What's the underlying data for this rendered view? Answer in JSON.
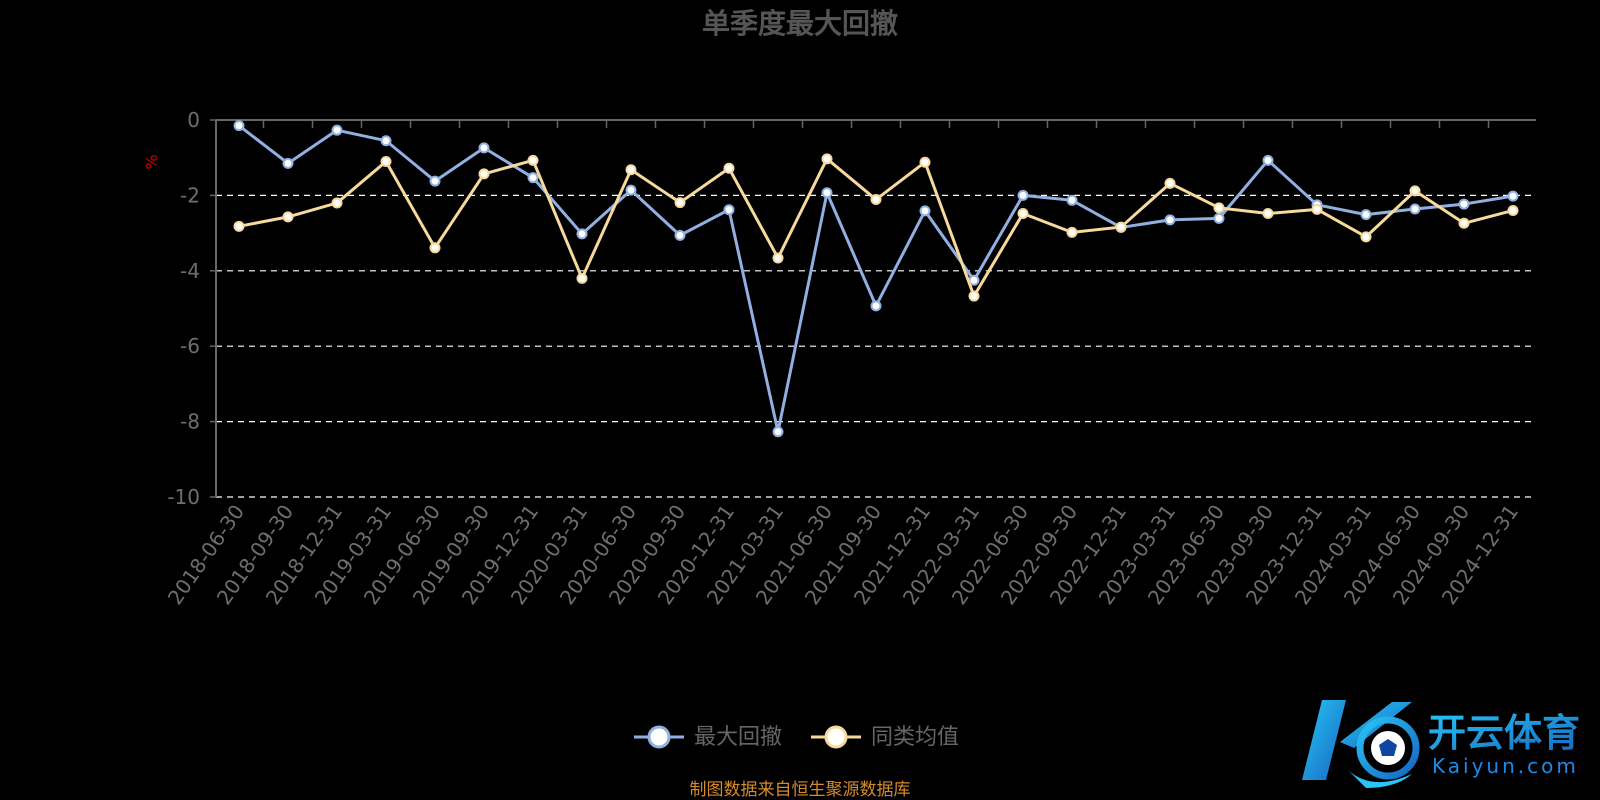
{
  "chart_data": {
    "type": "line",
    "title": "单季度最大回撤",
    "ylabel": "%",
    "ylim": [
      -10,
      0
    ],
    "yticks": [
      0,
      -2,
      -4,
      -6,
      -8,
      -10
    ],
    "grid": true,
    "legend_position": "bottom-center",
    "categories": [
      "2018-06-30",
      "2018-09-30",
      "2018-12-31",
      "2019-03-31",
      "2019-06-30",
      "2019-09-30",
      "2019-12-31",
      "2020-03-31",
      "2020-06-30",
      "2020-09-30",
      "2020-12-31",
      "2021-03-31",
      "2021-06-30",
      "2021-09-30",
      "2021-12-31",
      "2022-03-31",
      "2022-06-30",
      "2022-09-30",
      "2022-12-31",
      "2023-03-31",
      "2023-06-30",
      "2023-09-30",
      "2023-12-31",
      "2024-03-31",
      "2024-06-30",
      "2024-09-30",
      "2024-12-31"
    ],
    "series": [
      {
        "name": "最大回撤",
        "color": "#8fb0e0",
        "values": [
          -0.15,
          -1.15,
          -0.27,
          -0.55,
          -1.62,
          -0.74,
          -1.53,
          -3.02,
          -1.86,
          -3.06,
          -2.38,
          -8.27,
          -1.93,
          -4.93,
          -2.41,
          -4.25,
          -2.0,
          -2.13,
          -2.85,
          -2.65,
          -2.61,
          -1.07,
          -2.25,
          -2.51,
          -2.36,
          -2.23,
          -2.02
        ]
      },
      {
        "name": "同类均值",
        "color": "#f7d99b",
        "values": [
          -2.82,
          -2.57,
          -2.2,
          -1.1,
          -3.39,
          -1.43,
          -1.07,
          -4.2,
          -1.32,
          -2.19,
          -1.28,
          -3.66,
          -1.03,
          -2.11,
          -1.12,
          -4.67,
          -2.48,
          -2.98,
          -2.84,
          -1.68,
          -2.33,
          -2.48,
          -2.37,
          -3.1,
          -1.88,
          -2.74,
          -2.4
        ]
      }
    ]
  },
  "footer": {
    "source": "制图数据来自恒生聚源数据库"
  },
  "logo": {
    "cn_text": "开云体育",
    "en_text": "Kaiyun.com"
  },
  "colors": {
    "background": "#000000",
    "title": "#555555",
    "axis": "#666666",
    "tick_label": "#6e6e6e",
    "grid": "#ffffff",
    "ylabel": "#cc0000",
    "legend_text": "#666666",
    "source": "#d68b2b",
    "logo_blue": "#1e88e5",
    "logo_cyan": "#29c5f6"
  }
}
